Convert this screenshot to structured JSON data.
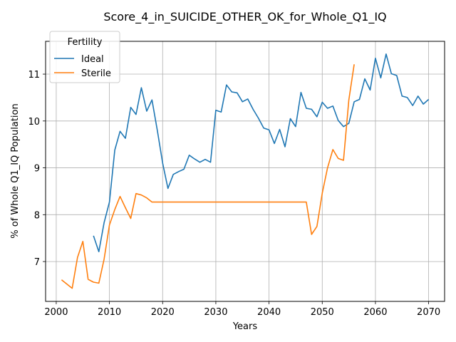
{
  "chart_data": {
    "type": "line",
    "title": "Score_4_in_SUICIDE_OTHER_OK_for_Whole_Q1_IQ",
    "xlabel": "Years",
    "ylabel": "% of Whole Q1_IQ Population",
    "xlim": [
      1998,
      2073
    ],
    "ylim": [
      6.15,
      11.7
    ],
    "xticks": [
      2000,
      2010,
      2020,
      2030,
      2040,
      2050,
      2060,
      2070
    ],
    "yticks": [
      7,
      8,
      9,
      10,
      11
    ],
    "grid": true,
    "legend": {
      "title": "Fertility",
      "placement": "top-left"
    },
    "series": [
      {
        "name": "Ideal",
        "color": "#1f77b4",
        "points": [
          [
            2007,
            7.55
          ],
          [
            2008,
            7.21
          ],
          [
            2009,
            7.83
          ],
          [
            2010,
            8.27
          ],
          [
            2011,
            9.38
          ],
          [
            2012,
            9.78
          ],
          [
            2013,
            9.63
          ],
          [
            2014,
            10.29
          ],
          [
            2015,
            10.14
          ],
          [
            2016,
            10.71
          ],
          [
            2017,
            10.21
          ],
          [
            2018,
            10.45
          ],
          [
            2019,
            9.8
          ],
          [
            2020,
            9.1
          ],
          [
            2021,
            8.56
          ],
          [
            2022,
            8.86
          ],
          [
            2023,
            8.92
          ],
          [
            2024,
            8.97
          ],
          [
            2025,
            9.27
          ],
          [
            2026,
            9.19
          ],
          [
            2027,
            9.12
          ],
          [
            2028,
            9.18
          ],
          [
            2029,
            9.12
          ],
          [
            2030,
            10.23
          ],
          [
            2031,
            10.19
          ],
          [
            2032,
            10.77
          ],
          [
            2033,
            10.62
          ],
          [
            2034,
            10.6
          ],
          [
            2035,
            10.41
          ],
          [
            2036,
            10.47
          ],
          [
            2037,
            10.25
          ],
          [
            2038,
            10.06
          ],
          [
            2039,
            9.85
          ],
          [
            2040,
            9.81
          ],
          [
            2041,
            9.52
          ],
          [
            2042,
            9.82
          ],
          [
            2043,
            9.45
          ],
          [
            2044,
            10.05
          ],
          [
            2045,
            9.88
          ],
          [
            2046,
            10.61
          ],
          [
            2047,
            10.27
          ],
          [
            2048,
            10.25
          ],
          [
            2049,
            10.09
          ],
          [
            2050,
            10.4
          ],
          [
            2051,
            10.27
          ],
          [
            2052,
            10.32
          ],
          [
            2053,
            10.01
          ],
          [
            2054,
            9.88
          ],
          [
            2055,
            9.95
          ],
          [
            2056,
            10.41
          ],
          [
            2057,
            10.46
          ],
          [
            2058,
            10.9
          ],
          [
            2059,
            10.66
          ],
          [
            2060,
            11.34
          ],
          [
            2061,
            10.92
          ],
          [
            2062,
            11.43
          ],
          [
            2063,
            11.01
          ],
          [
            2064,
            10.97
          ],
          [
            2065,
            10.53
          ],
          [
            2066,
            10.5
          ],
          [
            2067,
            10.33
          ],
          [
            2068,
            10.53
          ],
          [
            2069,
            10.36
          ],
          [
            2070,
            10.46
          ]
        ]
      },
      {
        "name": "Sterile",
        "color": "#ff7f0e",
        "points": [
          [
            2001,
            6.61
          ],
          [
            2002,
            6.52
          ],
          [
            2003,
            6.43
          ],
          [
            2004,
            7.09
          ],
          [
            2005,
            7.43
          ],
          [
            2006,
            6.62
          ],
          [
            2007,
            6.56
          ],
          [
            2008,
            6.54
          ],
          [
            2009,
            7.05
          ],
          [
            2010,
            7.78
          ],
          [
            2011,
            8.11
          ],
          [
            2012,
            8.39
          ],
          [
            2013,
            8.15
          ],
          [
            2014,
            7.92
          ],
          [
            2015,
            8.45
          ],
          [
            2016,
            8.42
          ],
          [
            2017,
            8.36
          ],
          [
            2018,
            8.27
          ],
          [
            2019,
            8.27
          ],
          [
            2025,
            8.27
          ],
          [
            2030,
            8.27
          ],
          [
            2035,
            8.27
          ],
          [
            2040,
            8.27
          ],
          [
            2045,
            8.27
          ],
          [
            2047,
            8.27
          ],
          [
            2048,
            7.58
          ],
          [
            2049,
            7.75
          ],
          [
            2050,
            8.46
          ],
          [
            2051,
            9.0
          ],
          [
            2052,
            9.39
          ],
          [
            2053,
            9.2
          ],
          [
            2054,
            9.16
          ],
          [
            2055,
            10.45
          ],
          [
            2056,
            11.21
          ]
        ]
      }
    ]
  }
}
